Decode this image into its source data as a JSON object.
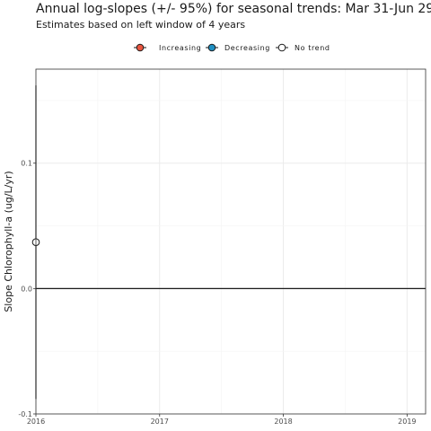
{
  "chart_data": {
    "type": "scatter",
    "title": "Annual log-slopes (+/- 95%) for seasonal trends: Mar 31-Jun 29",
    "subtitle": "Estimates based on left window of 4 years",
    "xlabel": "",
    "ylabel": "Slope Chlorophyll-a (ug/L/yr)",
    "xlim": [
      2016,
      2019.15
    ],
    "ylim": [
      -0.1,
      0.175
    ],
    "x_ticks": [
      2016,
      2017,
      2018,
      2019
    ],
    "x_tick_labels": [
      "2016",
      "2017",
      "2018",
      "2019"
    ],
    "y_ticks": [
      -0.1,
      0.0,
      0.1
    ],
    "y_tick_labels": [
      "-0.1",
      "0.0",
      "0.1"
    ],
    "grid": true,
    "reference_line_y": 0,
    "legend": {
      "position": "top",
      "entries": [
        {
          "label": "Increasing",
          "color": "#e8553f"
        },
        {
          "label": "Decreasing",
          "color": "#1f8fc2"
        },
        {
          "label": "No trend",
          "color": "#ffffff"
        }
      ]
    },
    "points": [
      {
        "x": 2016,
        "y": 0.037,
        "lower": -0.088,
        "upper": 0.162,
        "trend": "No trend"
      }
    ]
  }
}
